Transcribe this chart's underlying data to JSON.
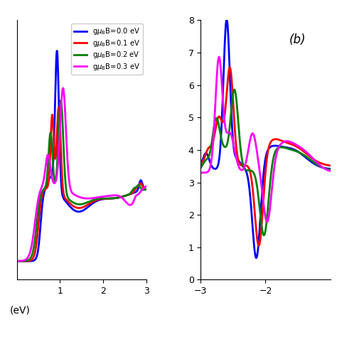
{
  "title_b": "(b)",
  "colors": [
    "blue",
    "red",
    "green",
    "magenta"
  ],
  "left_xlim": [
    0,
    3
  ],
  "left_ylim": [
    0.5,
    7.5
  ],
  "right_xlim": [
    -3,
    -1
  ],
  "right_ylim": [
    0,
    8
  ],
  "left_xticks": [
    1,
    2,
    3
  ],
  "right_xticks": [
    -3,
    -2
  ],
  "right_yticks": [
    0,
    1,
    2,
    3,
    4,
    5,
    6,
    7,
    8
  ],
  "xlabel_left": "(eV)",
  "linewidth": 2.0
}
